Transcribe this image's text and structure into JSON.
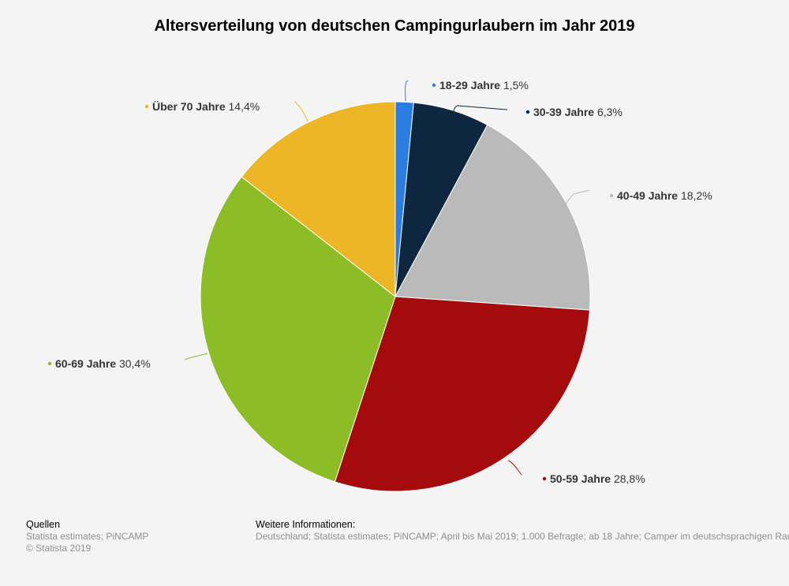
{
  "chart_data": {
    "type": "pie",
    "title": "Altersverteilung von deutschen Campingurlaubern im Jahr 2019",
    "categories": [
      "18-29 Jahre",
      "30-39 Jahre",
      "40-49 Jahre",
      "50-59 Jahre",
      "60-69 Jahre",
      "Über 70 Jahre"
    ],
    "values": [
      1.5,
      6.3,
      18.2,
      28.8,
      30.4,
      14.4
    ],
    "value_labels": [
      "1,5%",
      "6,3%",
      "18,2%",
      "28,8%",
      "30,4%",
      "14,4%"
    ],
    "colors": [
      "#2a7de1",
      "#0e2640",
      "#bababa",
      "#a50b0c",
      "#8cbd26",
      "#ecb627"
    ]
  },
  "footer": {
    "sources_heading": "Quellen",
    "sources_line1": "Statista estimates; PiNCAMP",
    "sources_line2": "© Statista 2019",
    "info_heading": "Weitere Informationen:",
    "info_line": "Deutschland; Statista estimates; PiNCAMP; April bis Mai 2019; 1.000 Befragte; ab 18 Jahre; Camper im deutschsprachigen Raum"
  }
}
